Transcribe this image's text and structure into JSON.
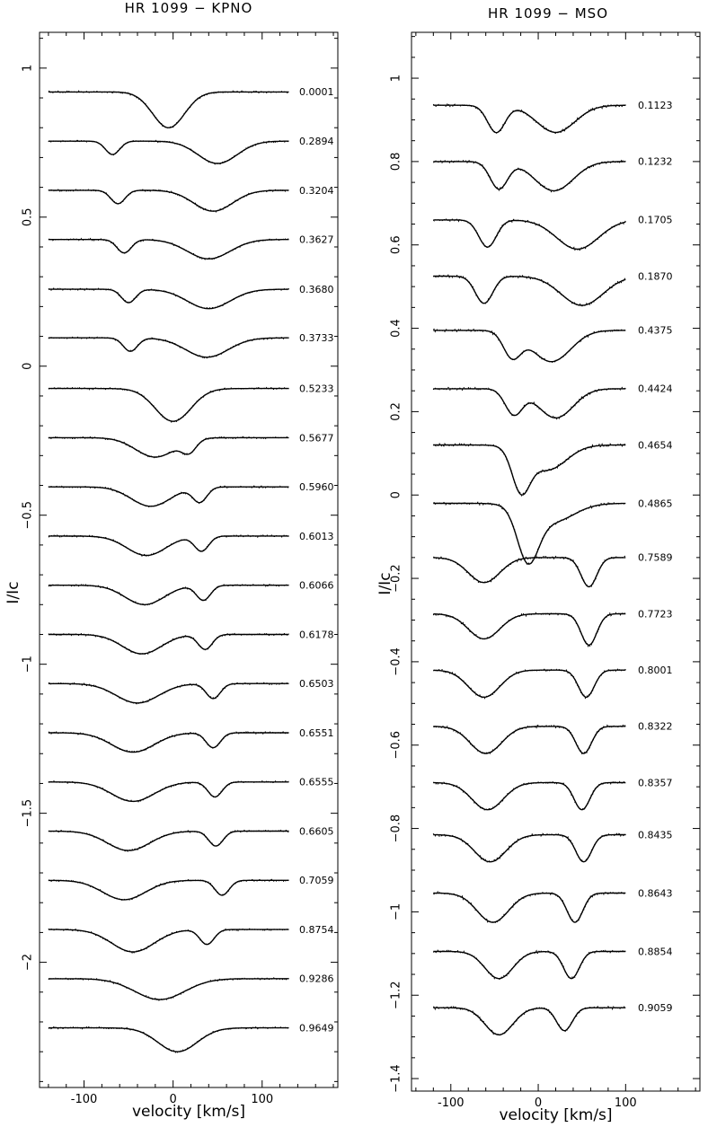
{
  "chart_data": [
    {
      "type": "line",
      "title": "HR 1099 − KPNO",
      "xlabel": "velocity [km/s]",
      "ylabel": "I/Ic",
      "xlim": [
        -150,
        185
      ],
      "ylim": [
        -2.42,
        1.12
      ],
      "xticks": [
        -100,
        0,
        100
      ],
      "yticks": [
        1,
        0.5,
        0,
        -0.5,
        -1,
        -1.5,
        -2
      ],
      "ytick_labels": [
        "1",
        "0.5",
        "0",
        "−0.5",
        "−1",
        "−1.5",
        "−2"
      ],
      "x_range_data": [
        -140,
        130
      ],
      "series_description": "Stokes I line profiles (observed dotted, model solid), offset vertically; labelled by rotational phase",
      "series": [
        {
          "phase": "0.0001",
          "continuum": 0.92,
          "dips": [
            [
              -5,
              0.12,
              18
            ]
          ]
        },
        {
          "phase": "0.2894",
          "continuum": 0.755,
          "dips": [
            [
              -68,
              0.045,
              8
            ],
            [
              50,
              0.075,
              22
            ]
          ]
        },
        {
          "phase": "0.3204",
          "continuum": 0.59,
          "dips": [
            [
              -62,
              0.045,
              8
            ],
            [
              45,
              0.07,
              22
            ]
          ]
        },
        {
          "phase": "0.3627",
          "continuum": 0.425,
          "dips": [
            [
              -55,
              0.045,
              8
            ],
            [
              40,
              0.065,
              24
            ]
          ]
        },
        {
          "phase": "0.3680",
          "continuum": 0.258,
          "dips": [
            [
              -50,
              0.045,
              8
            ],
            [
              40,
              0.065,
              24
            ]
          ]
        },
        {
          "phase": "0.3733",
          "continuum": 0.095,
          "dips": [
            [
              -48,
              0.045,
              8
            ],
            [
              38,
              0.065,
              24
            ]
          ]
        },
        {
          "phase": "0.5233",
          "continuum": -0.075,
          "dips": [
            [
              0,
              0.11,
              20
            ]
          ]
        },
        {
          "phase": "0.5677",
          "continuum": -0.24,
          "dips": [
            [
              -20,
              0.065,
              22
            ],
            [
              18,
              0.04,
              8
            ]
          ]
        },
        {
          "phase": "0.5960",
          "continuum": -0.405,
          "dips": [
            [
              -25,
              0.065,
              22
            ],
            [
              30,
              0.05,
              8
            ]
          ]
        },
        {
          "phase": "0.6013",
          "continuum": -0.57,
          "dips": [
            [
              -30,
              0.065,
              22
            ],
            [
              32,
              0.05,
              8
            ]
          ]
        },
        {
          "phase": "0.6066",
          "continuum": -0.735,
          "dips": [
            [
              -32,
              0.065,
              22
            ],
            [
              34,
              0.05,
              8
            ]
          ]
        },
        {
          "phase": "0.6178",
          "continuum": -0.9,
          "dips": [
            [
              -35,
              0.065,
              22
            ],
            [
              36,
              0.05,
              8
            ]
          ]
        },
        {
          "phase": "0.6503",
          "continuum": -1.065,
          "dips": [
            [
              -40,
              0.065,
              24
            ],
            [
              45,
              0.05,
              8
            ]
          ]
        },
        {
          "phase": "0.6551",
          "continuum": -1.23,
          "dips": [
            [
              -45,
              0.065,
              24
            ],
            [
              45,
              0.05,
              8
            ]
          ]
        },
        {
          "phase": "0.6555",
          "continuum": -1.395,
          "dips": [
            [
              -45,
              0.065,
              24
            ],
            [
              47,
              0.05,
              8
            ]
          ]
        },
        {
          "phase": "0.6605",
          "continuum": -1.56,
          "dips": [
            [
              -50,
              0.065,
              24
            ],
            [
              48,
              0.05,
              8
            ]
          ]
        },
        {
          "phase": "0.7059",
          "continuum": -1.725,
          "dips": [
            [
              -55,
              0.065,
              24
            ],
            [
              55,
              0.05,
              8
            ]
          ]
        },
        {
          "phase": "0.8754",
          "continuum": -1.89,
          "dips": [
            [
              -45,
              0.075,
              24
            ],
            [
              38,
              0.05,
              8
            ]
          ]
        },
        {
          "phase": "0.9286",
          "continuum": -2.055,
          "dips": [
            [
              -15,
              0.07,
              28
            ]
          ]
        },
        {
          "phase": "0.9649",
          "continuum": -2.22,
          "dips": [
            [
              5,
              0.08,
              22
            ]
          ]
        }
      ]
    },
    {
      "type": "line",
      "title": "HR 1099 − MSO",
      "xlabel": "velocity [km/s]",
      "ylabel": "I/Ic",
      "xlim": [
        -145,
        185
      ],
      "ylim": [
        -1.43,
        1.11
      ],
      "xticks": [
        -100,
        0,
        100
      ],
      "yticks": [
        1,
        0.8,
        0.6,
        0.4,
        0.2,
        0,
        -0.2,
        -0.4,
        -0.6,
        -0.8,
        -1,
        -1.2,
        -1.4
      ],
      "ytick_labels": [
        "1",
        "0.8",
        "0.6",
        "0.4",
        "0.2",
        "0",
        "−0.2",
        "−0.4",
        "−0.6",
        "−0.8",
        "−1",
        "−1.2",
        "−1.4"
      ],
      "x_range_data": [
        -120,
        100
      ],
      "series_description": "Stokes I line profiles (observed dotted, model solid), offset vertically; labelled by rotational phase",
      "series": [
        {
          "phase": "0.1123",
          "continuum": 0.935,
          "dips": [
            [
              -48,
              0.065,
              10
            ],
            [
              20,
              0.065,
              22
            ]
          ]
        },
        {
          "phase": "0.1232",
          "continuum": 0.8,
          "dips": [
            [
              -45,
              0.065,
              10
            ],
            [
              18,
              0.07,
              22
            ]
          ]
        },
        {
          "phase": "0.1705",
          "continuum": 0.66,
          "dips": [
            [
              -58,
              0.065,
              10
            ],
            [
              45,
              0.07,
              24
            ]
          ]
        },
        {
          "phase": "0.1870",
          "continuum": 0.525,
          "dips": [
            [
              -62,
              0.065,
              10
            ],
            [
              50,
              0.07,
              24
            ]
          ]
        },
        {
          "phase": "0.4375",
          "continuum": 0.395,
          "dips": [
            [
              -30,
              0.06,
              10
            ],
            [
              15,
              0.075,
              22
            ]
          ]
        },
        {
          "phase": "0.4424",
          "continuum": 0.255,
          "dips": [
            [
              -28,
              0.06,
              10
            ],
            [
              20,
              0.07,
              20
            ]
          ]
        },
        {
          "phase": "0.4654",
          "continuum": 0.12,
          "dips": [
            [
              -20,
              0.095,
              10
            ],
            [
              10,
              0.06,
              22
            ]
          ]
        },
        {
          "phase": "0.4865",
          "continuum": -0.02,
          "dips": [
            [
              -12,
              0.12,
              12
            ],
            [
              15,
              0.045,
              25
            ]
          ]
        },
        {
          "phase": "0.7589",
          "continuum": -0.15,
          "dips": [
            [
              -62,
              0.06,
              18
            ],
            [
              58,
              0.07,
              9
            ]
          ]
        },
        {
          "phase": "0.7723",
          "continuum": -0.285,
          "dips": [
            [
              -62,
              0.06,
              18
            ],
            [
              58,
              0.075,
              9
            ]
          ]
        },
        {
          "phase": "0.8001",
          "continuum": -0.42,
          "dips": [
            [
              -62,
              0.065,
              18
            ],
            [
              55,
              0.065,
              9
            ]
          ]
        },
        {
          "phase": "0.8322",
          "continuum": -0.555,
          "dips": [
            [
              -60,
              0.065,
              18
            ],
            [
              52,
              0.065,
              9
            ]
          ]
        },
        {
          "phase": "0.8357",
          "continuum": -0.69,
          "dips": [
            [
              -58,
              0.065,
              18
            ],
            [
              50,
              0.065,
              9
            ]
          ]
        },
        {
          "phase": "0.8435",
          "continuum": -0.815,
          "dips": [
            [
              -55,
              0.065,
              18
            ],
            [
              52,
              0.065,
              9
            ]
          ]
        },
        {
          "phase": "0.8643",
          "continuum": -0.955,
          "dips": [
            [
              -52,
              0.07,
              18
            ],
            [
              42,
              0.07,
              9
            ]
          ]
        },
        {
          "phase": "0.8854",
          "continuum": -1.095,
          "dips": [
            [
              -45,
              0.065,
              16
            ],
            [
              38,
              0.065,
              9
            ]
          ]
        },
        {
          "phase": "0.9059",
          "continuum": -1.23,
          "dips": [
            [
              -45,
              0.065,
              16
            ],
            [
              30,
              0.055,
              9
            ]
          ]
        }
      ]
    }
  ]
}
